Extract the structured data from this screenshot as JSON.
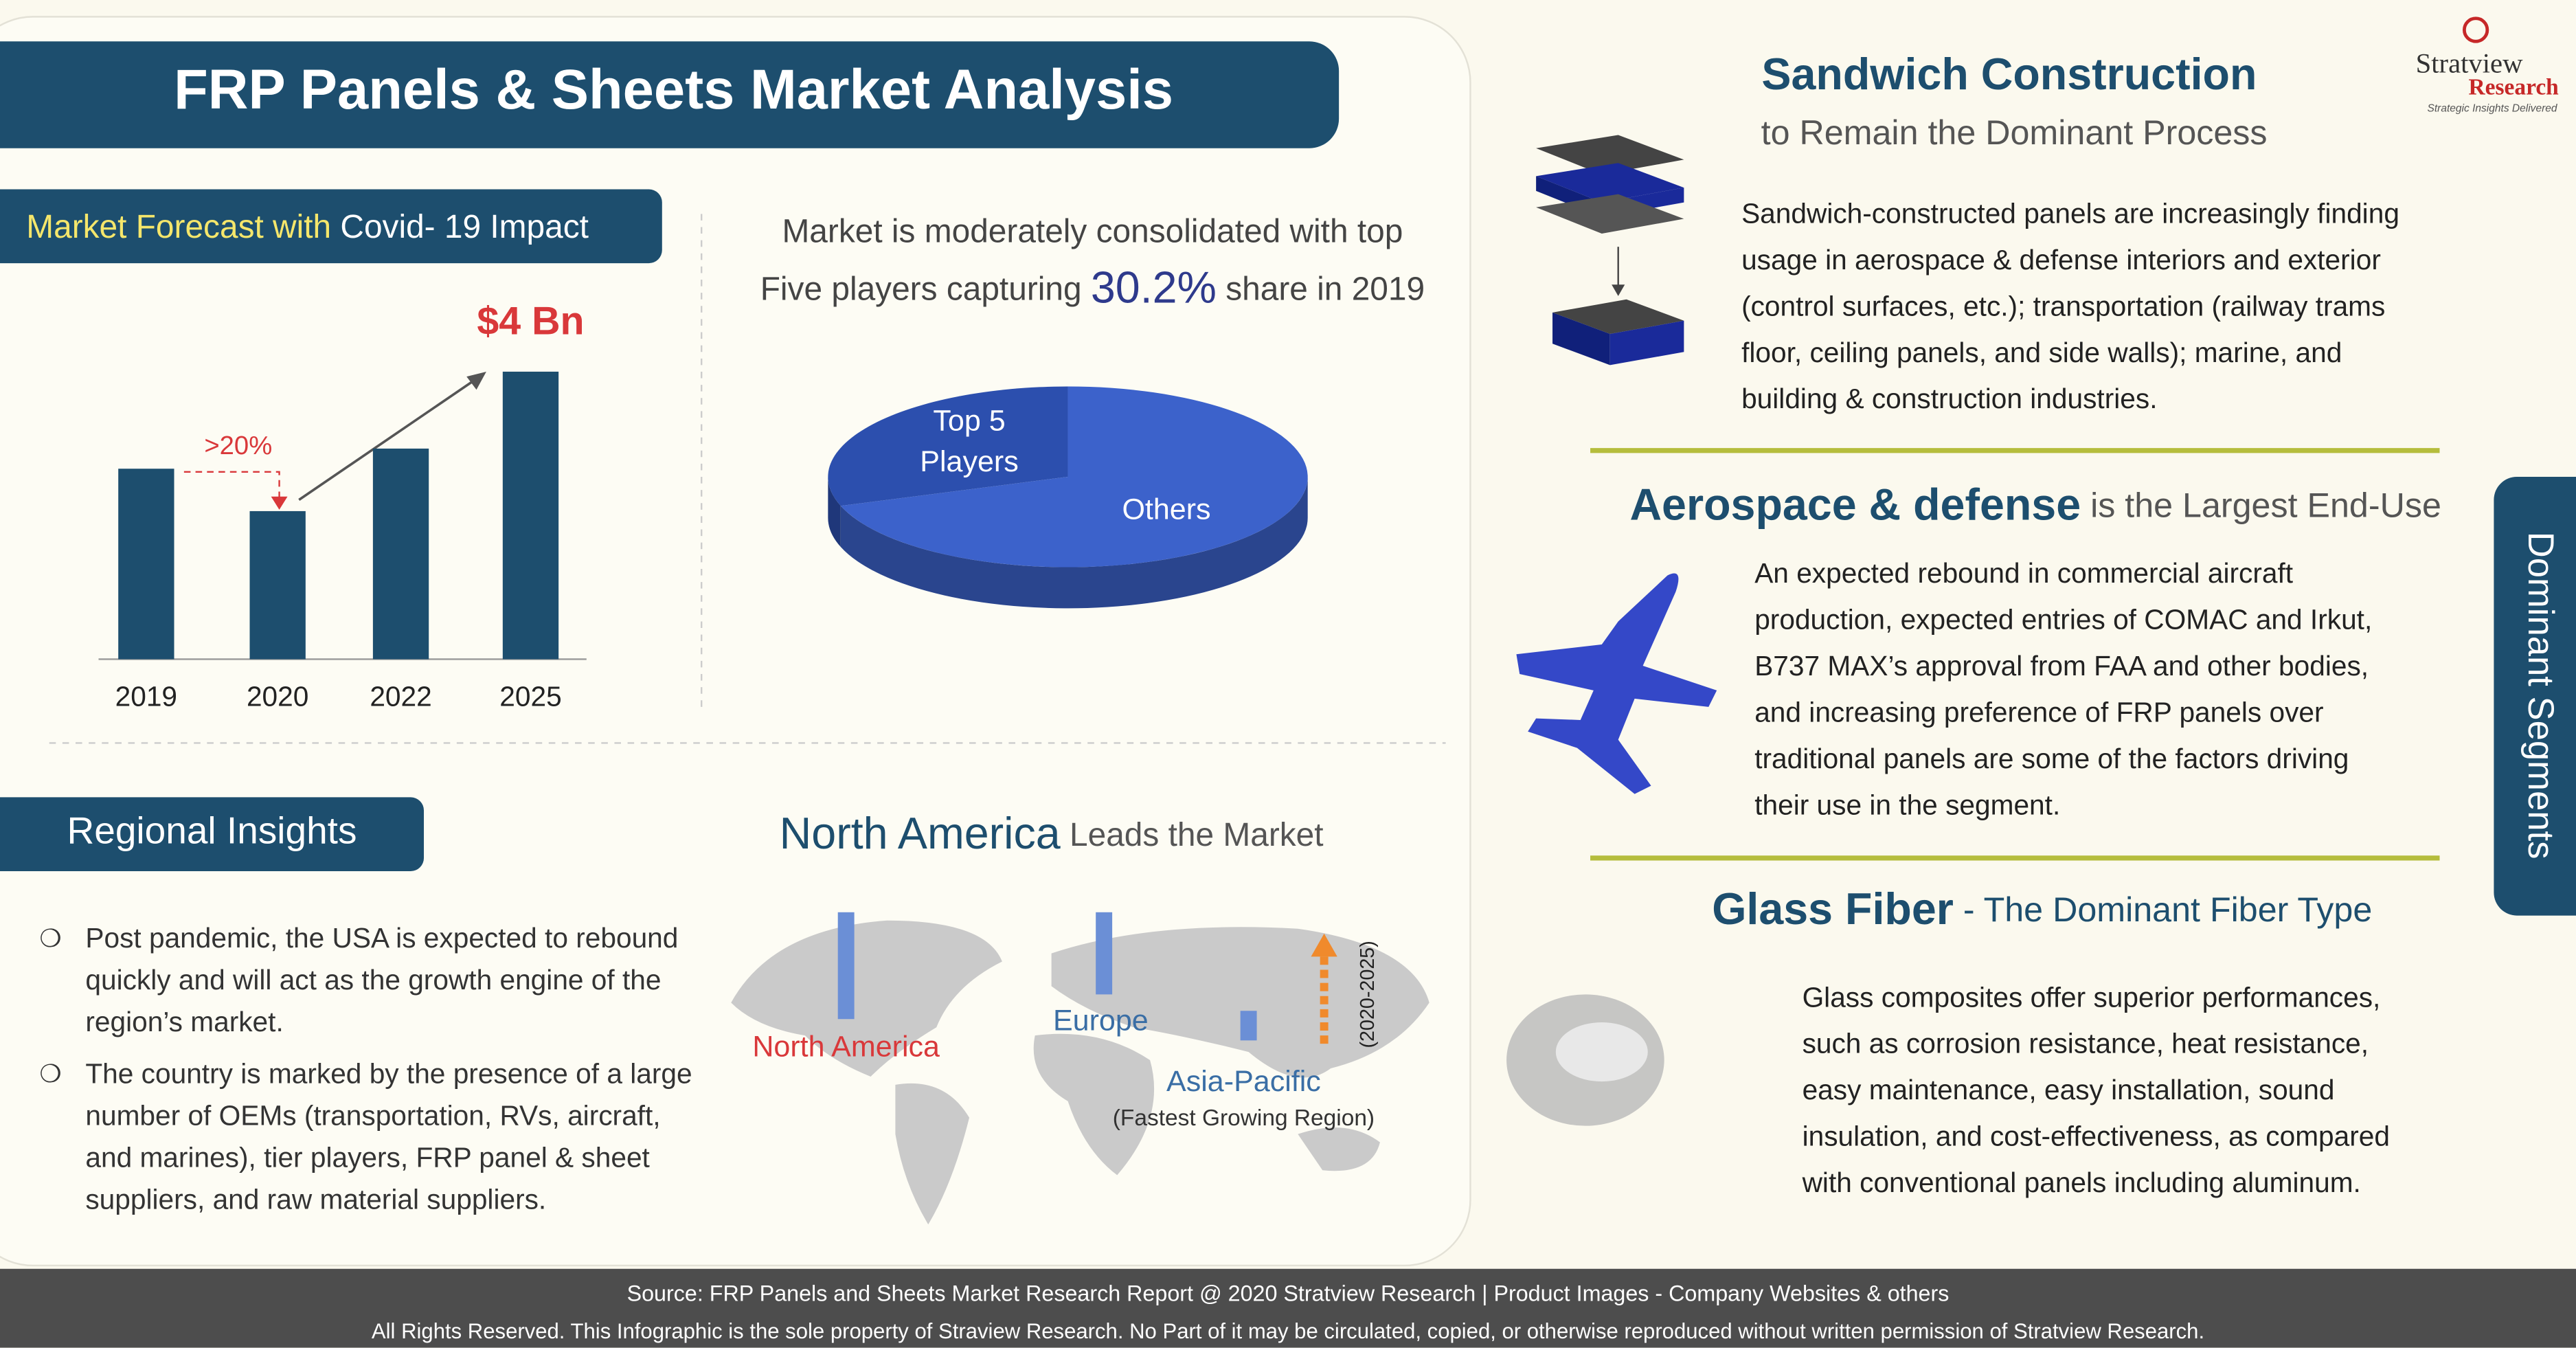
{
  "header": {
    "title": "FRP Panels & Sheets Market Analysis"
  },
  "logo": {
    "name": "Stratview",
    "sub": "Research",
    "tagline": "Strategic Insights Delivered"
  },
  "forecast": {
    "heading_highlight": "Market Forecast with",
    "heading_rest": "Covid- 19 Impact",
    "categories": [
      "2019",
      "2020",
      "2022",
      "2025"
    ],
    "values": [
      2.65,
      2.06,
      2.93,
      4
    ],
    "value_labels": [
      null,
      null,
      null,
      "$4 Bn"
    ],
    "annotation": ">20%"
  },
  "share": {
    "headline_1": "Market is moderately consolidated with top",
    "headline_2a": "Five players capturing",
    "headline_highlight": "30.2%",
    "headline_2b": "share in 2019",
    "labels": [
      [
        "Top 5",
        "Players"
      ],
      [
        "Others"
      ]
    ],
    "values": [
      30.2,
      69.8
    ],
    "colors": [
      "#2c4fae",
      "#3c62cb"
    ]
  },
  "regional": {
    "heading": "Regional Insights",
    "bullets": [
      [
        "Post pandemic, the USA is expected to rebound",
        "quickly and will act as the growth engine of the",
        "region’s market."
      ],
      [
        "The country is marked by the presence of a large",
        "number of OEMs (transportation, RVs, aircraft,",
        "and marines), tier players, FRP panel & sheet",
        "suppliers, and raw material suppliers."
      ]
    ]
  },
  "map": {
    "headline_bold": "North America",
    "headline_rest": "Leads the Market",
    "labels": [
      "North America",
      "Europe",
      "Asia-Pacific"
    ],
    "note": "(Fastest Growing Region)",
    "period": "(2020-2025)"
  },
  "segments": {
    "tab": "Dominant Segments",
    "items": [
      {
        "title": "Sandwich Construction",
        "subtitle": "to Remain the Dominant Process",
        "lines": [
          "Sandwich-constructed panels are increasingly finding",
          "usage in aerospace & defense interiors  and exterior",
          "(control surfaces, etc.); transportation (railway trams",
          "floor, ceiling panels, and side walls); marine, and",
          "building & construction industries."
        ]
      },
      {
        "title": "Aerospace & defense",
        "subtitle": "is the Largest End-Use",
        "lines": [
          "An expected rebound in commercial aircraft",
          "production, expected entries of COMAC and Irkut,",
          "B737 MAX’s approval from FAA and other bodies,",
          "and increasing preference of FRP panels over",
          "traditional panels are some of the factors driving",
          "their use in the segment."
        ]
      },
      {
        "title": "Glass Fiber",
        "subtitle": "- The Dominant Fiber Type",
        "lines": [
          "Glass composites offer superior performances,",
          "such as corrosion resistance, heat resistance,",
          "easy maintenance, easy installation, sound",
          "insulation, and cost-effectiveness, as compared",
          "with conventional panels including aluminum."
        ]
      }
    ]
  },
  "footer": {
    "line_1": "Source: FRP Panels and Sheets Market  Research Report @ 2020 Stratview Research  |  Product Images  - Company Websites & others",
    "line_2": "All Rights Reserved. This Infographic is the sole property of Straview Research. No Part of it may be circulated, copied, or otherwise reproduced without written permission of Stratview Research."
  }
}
